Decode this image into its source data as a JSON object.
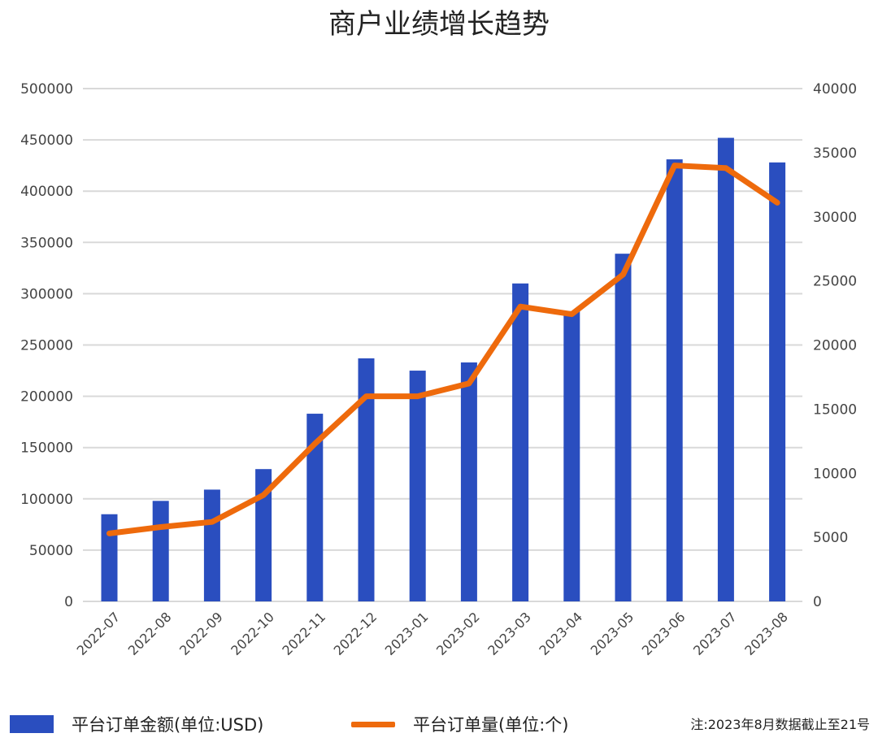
{
  "chart_data": {
    "type": "bar",
    "title": "商户业绩增长趋势",
    "categories": [
      "2022-07",
      "2022-08",
      "2022-09",
      "2022-10",
      "2022-11",
      "2022-12",
      "2023-01",
      "2023-02",
      "2023-03",
      "2023-04",
      "2023-05",
      "2023-06",
      "2023-07",
      "2023-08"
    ],
    "series": [
      {
        "name": "平台订单金额(单位:USD)",
        "type": "bar",
        "axis": "left",
        "color": "#2a4ebf",
        "values": [
          85000,
          98000,
          109000,
          129000,
          183000,
          237000,
          225000,
          233000,
          310000,
          283000,
          339000,
          431000,
          452000,
          428000
        ]
      },
      {
        "name": "平台订单量(单位:个)",
        "type": "line",
        "axis": "right",
        "color": "#ee6a0c",
        "values": [
          5300,
          5800,
          6200,
          8300,
          12300,
          16000,
          16000,
          17000,
          23000,
          22400,
          25500,
          34000,
          33800,
          31100
        ]
      }
    ],
    "y_left": {
      "ylim": [
        0,
        500000
      ],
      "ticks": [
        "0",
        "50000",
        "100000",
        "150000",
        "200000",
        "250000",
        "300000",
        "350000",
        "400000",
        "450000",
        "500000"
      ]
    },
    "y_right": {
      "ylim": [
        0,
        40000
      ],
      "ticks": [
        "0",
        "5000",
        "10000",
        "15000",
        "20000",
        "25000",
        "30000",
        "35000",
        "40000"
      ]
    },
    "grid": true,
    "legend": "bottom-left",
    "note": "注:2023年8月数据截止至21号"
  }
}
